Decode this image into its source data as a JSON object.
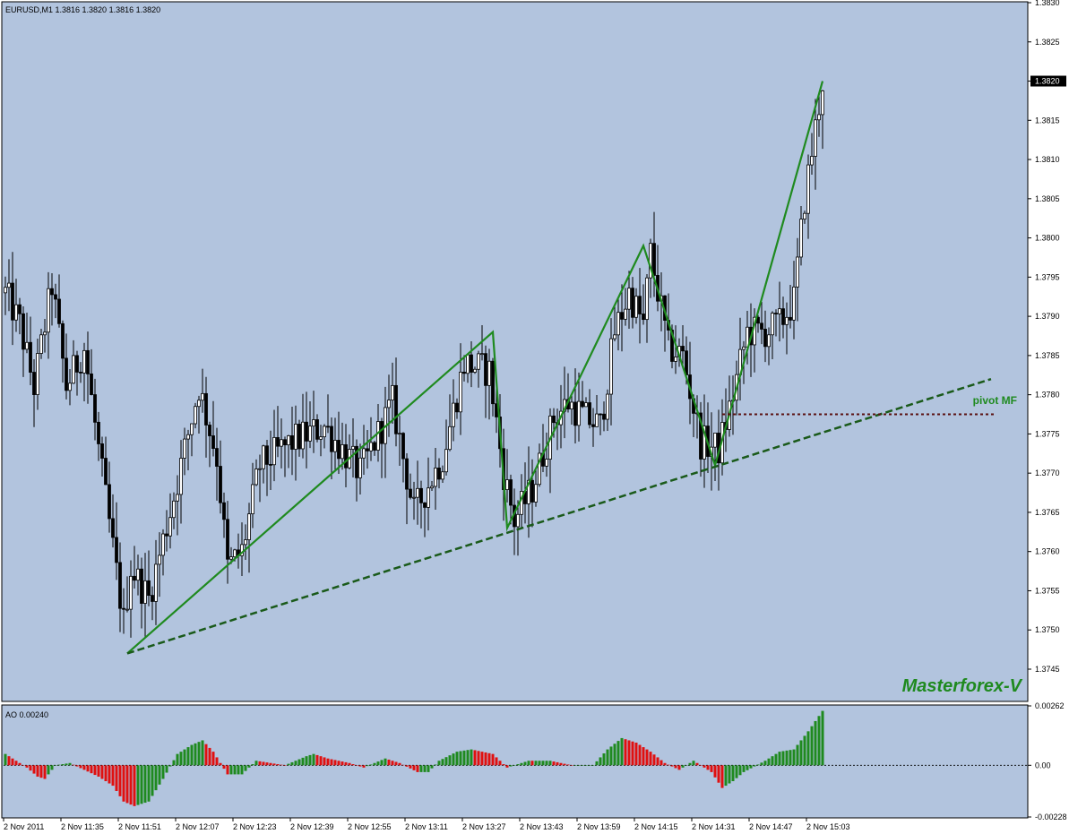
{
  "chart_data": [
    {
      "type": "candlestick",
      "symbol_info": "EURUSD,M1  1.3816 1.3820 1.3816 1.3820",
      "ylim": [
        1.3741,
        1.383
      ],
      "y_ticks": [
        "1.3830",
        "1.3825",
        "1.3820",
        "1.3815",
        "1.3810",
        "1.3805",
        "1.3800",
        "1.3795",
        "1.3790",
        "1.3785",
        "1.3780",
        "1.3775",
        "1.3770",
        "1.3765",
        "1.3760",
        "1.3755",
        "1.3750",
        "1.3745"
      ],
      "y_tick_values": [
        1.383,
        1.3825,
        1.382,
        1.3815,
        1.381,
        1.3805,
        1.38,
        1.3795,
        1.379,
        1.3785,
        1.378,
        1.3775,
        1.377,
        1.3765,
        1.376,
        1.3755,
        1.375,
        1.3745
      ],
      "current_price": "1.3820",
      "current_price_value": 1.382,
      "x_labels": [
        "2 Nov 2011",
        "2 Nov 11:35",
        "2 Nov 11:51",
        "2 Nov 12:07",
        "2 Nov 12:23",
        "2 Nov 12:39",
        "2 Nov 12:55",
        "2 Nov 13:11",
        "2 Nov 13:27",
        "2 Nov 13:43",
        "2 Nov 13:59",
        "2 Nov 14:15",
        "2 Nov 14:31",
        "2 Nov 14:47",
        "2 Nov 15:03"
      ],
      "bars_count": 229,
      "price_path": [
        [
          0,
          1.3793
        ],
        [
          4,
          1.3789
        ],
        [
          8,
          1.3781
        ],
        [
          13,
          1.3794
        ],
        [
          17,
          1.3781
        ],
        [
          22,
          1.3786
        ],
        [
          26,
          1.3773
        ],
        [
          33,
          1.3751
        ],
        [
          35,
          1.3758
        ],
        [
          40,
          1.3754
        ],
        [
          47,
          1.3767
        ],
        [
          54,
          1.3781
        ],
        [
          59,
          1.3772
        ],
        [
          62,
          1.3758
        ],
        [
          66,
          1.376
        ],
        [
          71,
          1.3771
        ],
        [
          80,
          1.3774
        ],
        [
          89,
          1.3776
        ],
        [
          99,
          1.377
        ],
        [
          108,
          1.3779
        ],
        [
          114,
          1.3765
        ],
        [
          122,
          1.3772
        ],
        [
          128,
          1.3784
        ],
        [
          135,
          1.3783
        ],
        [
          139,
          1.377
        ],
        [
          142,
          1.3764
        ],
        [
          147,
          1.3768
        ],
        [
          153,
          1.3777
        ],
        [
          157,
          1.3779
        ],
        [
          162,
          1.3777
        ],
        [
          166,
          1.3776
        ],
        [
          170,
          1.3788
        ],
        [
          174,
          1.3793
        ],
        [
          178,
          1.3789
        ],
        [
          180,
          1.3798
        ],
        [
          185,
          1.3786
        ],
        [
          189,
          1.3785
        ],
        [
          194,
          1.3774
        ],
        [
          199,
          1.3773
        ],
        [
          203,
          1.378
        ],
        [
          207,
          1.3788
        ],
        [
          212,
          1.3788
        ],
        [
          216,
          1.3789
        ],
        [
          220,
          1.3792
        ],
        [
          223,
          1.3805
        ],
        [
          226,
          1.3814
        ],
        [
          228,
          1.382
        ]
      ],
      "zigzag": [
        [
          34,
          1.3747
        ],
        [
          136,
          1.3788
        ],
        [
          140,
          1.3763
        ],
        [
          178,
          1.3799
        ],
        [
          198,
          1.3771
        ],
        [
          228,
          1.382
        ]
      ],
      "trendline": {
        "from": [
          34,
          1.3747
        ],
        "to": [
          275,
          1.3782
        ]
      },
      "pivot_label": "pivot MF",
      "pivot_value": 1.37775,
      "pivot_from_bar": 200,
      "brand": "Masterforex-V"
    },
    {
      "type": "bar",
      "indicator_info": "AO 0.00240",
      "ylim": [
        -0.00228,
        0.00262
      ],
      "y_ticks": [
        "0.00262",
        "0.00",
        "-0.00228"
      ],
      "y_tick_values": [
        0.00262,
        0.0,
        -0.00228
      ],
      "zero_line": true,
      "ao_path": [
        [
          0,
          0.0005
        ],
        [
          6,
          -0.0001
        ],
        [
          9,
          -0.0005
        ],
        [
          11,
          -0.0006
        ],
        [
          14,
          0.0
        ],
        [
          18,
          0.0001
        ],
        [
          22,
          -0.0002
        ],
        [
          26,
          -0.0005
        ],
        [
          30,
          -0.0009
        ],
        [
          33,
          -0.0016
        ],
        [
          36,
          -0.0018
        ],
        [
          40,
          -0.0016
        ],
        [
          44,
          -0.0006
        ],
        [
          48,
          0.0005
        ],
        [
          52,
          0.0009
        ],
        [
          55,
          0.0011
        ],
        [
          58,
          0.0006
        ],
        [
          62,
          -0.0004
        ],
        [
          66,
          -0.0004
        ],
        [
          70,
          0.0002
        ],
        [
          78,
          0.0
        ],
        [
          84,
          0.0004
        ],
        [
          86,
          0.0005
        ],
        [
          90,
          0.0003
        ],
        [
          96,
          0.0001
        ],
        [
          100,
          -0.0001
        ],
        [
          106,
          0.0003
        ],
        [
          110,
          0.0001
        ],
        [
          115,
          -0.0003
        ],
        [
          118,
          -0.0003
        ],
        [
          121,
          0.0002
        ],
        [
          126,
          0.0006
        ],
        [
          130,
          0.0007
        ],
        [
          136,
          0.0005
        ],
        [
          140,
          -0.0001
        ],
        [
          146,
          0.0002
        ],
        [
          152,
          0.0002
        ],
        [
          158,
          0.0
        ],
        [
          164,
          0.0
        ],
        [
          168,
          0.0007
        ],
        [
          172,
          0.0012
        ],
        [
          176,
          0.001
        ],
        [
          180,
          0.0006
        ],
        [
          184,
          0.0001
        ],
        [
          188,
          -0.0002
        ],
        [
          192,
          0.0002
        ],
        [
          197,
          -0.0003
        ],
        [
          200,
          -0.001
        ],
        [
          203,
          -0.0007
        ],
        [
          206,
          -0.0003
        ],
        [
          212,
          0.0002
        ],
        [
          216,
          0.0006
        ],
        [
          220,
          0.0007
        ],
        [
          224,
          0.0015
        ],
        [
          228,
          0.0024
        ]
      ]
    }
  ]
}
